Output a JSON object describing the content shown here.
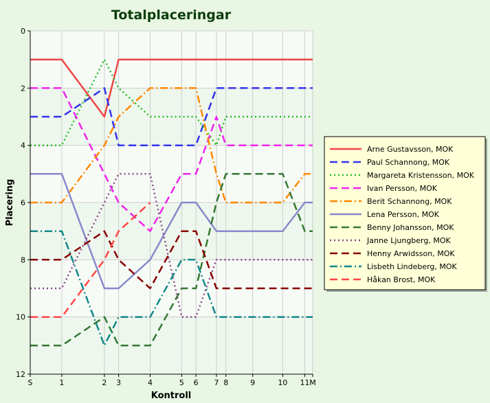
{
  "chart_data": {
    "type": "line",
    "title": "Totalplaceringar",
    "xlabel": "Kontroll",
    "ylabel": "Placering",
    "x_ticks": [
      "S",
      "1",
      "2",
      "3",
      "4",
      "5",
      "6",
      "7",
      "8",
      "9",
      "10",
      "11",
      "M"
    ],
    "x_tick_positions": [
      0,
      1,
      2.35,
      2.8,
      3.8,
      4.8,
      5.25,
      5.9,
      6.2,
      7.05,
      8.0,
      8.7,
      8.95
    ],
    "ylim": [
      0,
      12
    ],
    "y_ticks": [
      0,
      2,
      4,
      6,
      8,
      10,
      12
    ],
    "y_inverted": true,
    "grid": true,
    "legend_position": "right",
    "series": [
      {
        "name": "Arne Gustavsson, MOK",
        "color": "#ee4444",
        "dash": "solid",
        "values": [
          1,
          1,
          3,
          1,
          1,
          1,
          1,
          1,
          1,
          1,
          1,
          1,
          1
        ]
      },
      {
        "name": "Paul Schannong, MOK",
        "color": "#3333ee",
        "dash": "dash",
        "values": [
          3,
          3,
          2,
          4,
          4,
          4,
          4,
          2,
          2,
          2,
          2,
          2,
          2
        ]
      },
      {
        "name": "Margareta Kristensson, MOK",
        "color": "#22bb22",
        "dash": "dot",
        "values": [
          4,
          4,
          1,
          2,
          3,
          3,
          3,
          4,
          3,
          3,
          3,
          3,
          3
        ]
      },
      {
        "name": "Ivan Persson, MOK",
        "color": "#ee22ee",
        "dash": "dash",
        "values": [
          2,
          2,
          5,
          6,
          7,
          5,
          5,
          3,
          4,
          4,
          4,
          4,
          4
        ]
      },
      {
        "name": "Berit Schannong, MOK",
        "color": "#ff8800",
        "dash": "dashdot",
        "values": [
          6,
          6,
          4,
          3,
          2,
          2,
          2,
          5,
          6,
          6,
          6,
          5,
          5
        ]
      },
      {
        "name": "Lena Persson, MOK",
        "color": "#8888cc",
        "dash": "solid",
        "values": [
          5,
          5,
          9,
          9,
          8,
          6,
          6,
          7,
          7,
          7,
          7,
          6,
          6
        ]
      },
      {
        "name": "Benny Johansson, MOK",
        "color": "#337733",
        "dash": "dash",
        "values": [
          11,
          11,
          10,
          11,
          11,
          9,
          9,
          6,
          5,
          5,
          5,
          7,
          7
        ]
      },
      {
        "name": "Janne Ljungberg, MOK",
        "color": "#884488",
        "dash": "dot",
        "values": [
          9,
          9,
          6,
          5,
          5,
          10,
          10,
          8,
          8,
          8,
          8,
          8,
          8
        ]
      },
      {
        "name": "Henny Arwidsson, MOK",
        "color": "#880000",
        "dash": "dash",
        "values": [
          8,
          8,
          7,
          8,
          9,
          7,
          7,
          9,
          9,
          9,
          9,
          9,
          9
        ]
      },
      {
        "name": "Lisbeth Lindeberg, MOK",
        "color": "#118888",
        "dash": "dashdot",
        "values": [
          7,
          7,
          11,
          10,
          10,
          8,
          8,
          10,
          10,
          10,
          10,
          10,
          10
        ]
      },
      {
        "name": "Håkan Brost, MOK",
        "color": "#ff4444",
        "dash": "dash",
        "values": [
          10,
          10,
          8,
          7,
          6,
          null,
          null,
          null,
          null,
          null,
          null,
          null,
          null
        ]
      }
    ]
  }
}
